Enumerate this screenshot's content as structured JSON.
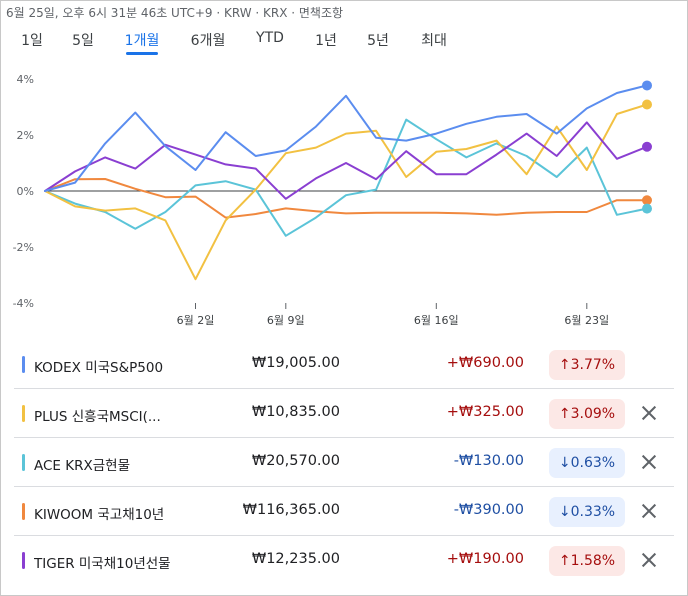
{
  "header": {
    "timestamp": "6월 25일, 오후 6시 31분 46초 UTC+9 · KRW · KRX · 면책조항"
  },
  "tabs": [
    {
      "label": "1일",
      "active": false
    },
    {
      "label": "5일",
      "active": false
    },
    {
      "label": "1개월",
      "active": true
    },
    {
      "label": "6개월",
      "active": false
    },
    {
      "label": "YTD",
      "active": false
    },
    {
      "label": "1년",
      "active": false
    },
    {
      "label": "5년",
      "active": false
    },
    {
      "label": "최대",
      "active": false
    }
  ],
  "chart_data": {
    "type": "line",
    "title": "",
    "xlabel": "",
    "ylabel": "",
    "ylim": [
      -4,
      4
    ],
    "y_ticks": [
      {
        "label": "4%",
        "value": 4
      },
      {
        "label": "2%",
        "value": 2
      },
      {
        "label": "0%",
        "value": 0
      },
      {
        "label": "-2%",
        "value": -2
      },
      {
        "label": "-4%",
        "value": -4
      }
    ],
    "x_ticks": [
      {
        "label": "6월 2일",
        "index": 5
      },
      {
        "label": "6월 9일",
        "index": 8
      },
      {
        "label": "6월 16일",
        "index": 13
      },
      {
        "label": "6월 23일",
        "index": 18
      }
    ],
    "x_count": 21,
    "grid": false,
    "zero_line": true,
    "series": [
      {
        "name": "KODEX 미국S&P500",
        "color": "#5B8DEF",
        "values": [
          0,
          0.3,
          1.7,
          2.8,
          1.6,
          0.75,
          2.1,
          1.25,
          1.45,
          2.3,
          3.4,
          1.9,
          1.8,
          2.05,
          2.4,
          2.65,
          2.75,
          2.05,
          2.95,
          3.5,
          3.77
        ]
      },
      {
        "name": "PLUS 신흥국MSCI(...",
        "color": "#F2C142",
        "values": [
          0,
          -0.55,
          -0.7,
          -0.62,
          -1.05,
          -3.15,
          -1.05,
          0.05,
          1.35,
          1.55,
          2.05,
          2.15,
          0.5,
          1.4,
          1.5,
          1.8,
          0.6,
          2.3,
          0.75,
          2.75,
          3.09
        ]
      },
      {
        "name": "ACE KRX금현물",
        "color": "#5BC4D8",
        "values": [
          0,
          -0.45,
          -0.75,
          -1.35,
          -0.75,
          0.2,
          0.35,
          0.05,
          -1.6,
          -0.95,
          -0.15,
          0.05,
          2.55,
          1.85,
          1.2,
          1.7,
          1.25,
          0.5,
          1.55,
          -0.85,
          -0.63
        ]
      },
      {
        "name": "KIWOOM 국고채10년",
        "color": "#F0883E",
        "values": [
          0,
          0.42,
          0.43,
          0.08,
          -0.22,
          -0.2,
          -0.95,
          -0.82,
          -0.62,
          -0.72,
          -0.8,
          -0.78,
          -0.78,
          -0.78,
          -0.8,
          -0.85,
          -0.78,
          -0.75,
          -0.75,
          -0.33,
          -0.33
        ]
      },
      {
        "name": "TIGER 미국채10년선물",
        "color": "#8A3FD1",
        "values": [
          0,
          0.7,
          1.2,
          0.8,
          1.65,
          1.3,
          0.95,
          0.8,
          -0.28,
          0.45,
          1.0,
          0.42,
          1.42,
          0.6,
          0.6,
          1.3,
          2.05,
          1.25,
          2.45,
          1.15,
          1.58
        ]
      }
    ]
  },
  "holdings": [
    {
      "name": "KODEX 미국S&P500",
      "price": "₩19,005.00",
      "change": "+₩690.00",
      "percent": "3.77%",
      "direction": "up",
      "arrow": "↑",
      "color": "#5B8DEF",
      "removable": false
    },
    {
      "name": "PLUS 신흥국MSCI(...",
      "price": "₩10,835.00",
      "change": "+₩325.00",
      "percent": "3.09%",
      "direction": "up",
      "arrow": "↑",
      "color": "#F2C142",
      "removable": true
    },
    {
      "name": "ACE KRX금현물",
      "price": "₩20,570.00",
      "change": "-₩130.00",
      "percent": "0.63%",
      "direction": "down",
      "arrow": "↓",
      "color": "#5BC4D8",
      "removable": true
    },
    {
      "name": "KIWOOM 국고채10년",
      "price": "₩116,365.00",
      "change": "-₩390.00",
      "percent": "0.33%",
      "direction": "down",
      "arrow": "↓",
      "color": "#F0883E",
      "removable": true
    },
    {
      "name": "TIGER 미국채10년선물",
      "price": "₩12,235.00",
      "change": "+₩190.00",
      "percent": "1.58%",
      "direction": "up",
      "arrow": "↑",
      "color": "#8A3FD1",
      "removable": true
    }
  ]
}
